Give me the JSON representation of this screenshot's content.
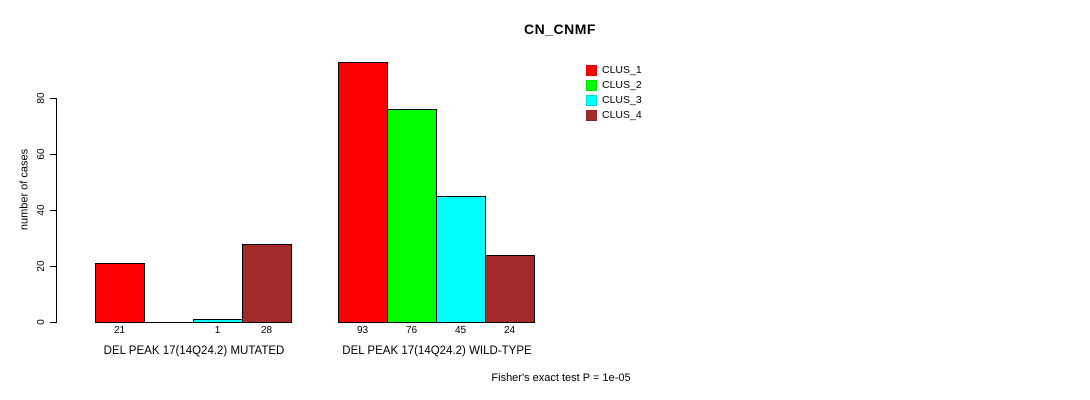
{
  "chart_data": {
    "type": "bar",
    "title": "CN_CNMF",
    "ylabel": "number of cases",
    "yticks": [
      0,
      20,
      40,
      60,
      80
    ],
    "ylim": [
      0,
      93
    ],
    "grid": false,
    "legend_position": "top-right",
    "series": [
      "CLUS_1",
      "CLUS_2",
      "CLUS_3",
      "CLUS_4"
    ],
    "colors": [
      "#ff0000",
      "#00ff00",
      "#00ffff",
      "#a52a2a"
    ],
    "groups": [
      {
        "label": "DEL PEAK 17(14Q24.2) MUTATED",
        "values": [
          21,
          0,
          1,
          28
        ],
        "value_labels": [
          "21",
          "",
          "1",
          "28"
        ]
      },
      {
        "label": "DEL PEAK 17(14Q24.2) WILD-TYPE",
        "values": [
          93,
          76,
          45,
          24
        ],
        "value_labels": [
          "93",
          "76",
          "45",
          "24"
        ]
      }
    ],
    "footnote": "Fisher's exact test P = 1e-05"
  }
}
